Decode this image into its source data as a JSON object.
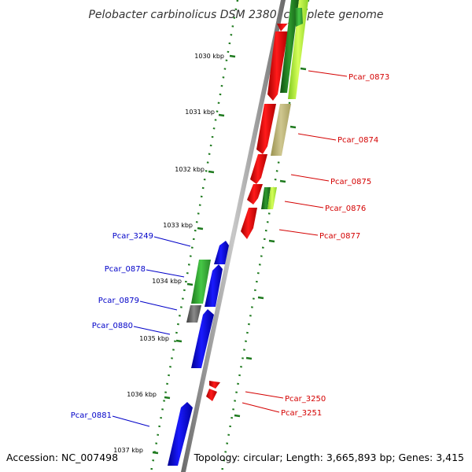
{
  "title": "Pelobacter carbinolicus DSM 2380, complete genome",
  "footer": {
    "accession": "Accession: NC_007498",
    "summary": "Topology: circular; Length: 3,665,893 bp; Genes: 3,415"
  },
  "colors": {
    "backbone": "#8c8c8c",
    "tick": "#1e7a1e",
    "label_right": "#d40000",
    "label_left": "#0000c8"
  },
  "kbp_ticks": [
    "1030 kbp",
    "1031 kbp",
    "1032 kbp",
    "1033 kbp",
    "1034 kbp",
    "1035 kbp",
    "1036 kbp",
    "1037 kbp"
  ],
  "genes_right": [
    {
      "label": "Pcar_0873"
    },
    {
      "label": "Pcar_0874"
    },
    {
      "label": "Pcar_0875"
    },
    {
      "label": "Pcar_0876"
    },
    {
      "label": "Pcar_0877"
    },
    {
      "label": "Pcar_3250"
    },
    {
      "label": "Pcar_3251"
    }
  ],
  "genes_left": [
    {
      "label": "Pcar_3249"
    },
    {
      "label": "Pcar_0878"
    },
    {
      "label": "Pcar_0879"
    },
    {
      "label": "Pcar_0880"
    },
    {
      "label": "Pcar_0881"
    }
  ]
}
